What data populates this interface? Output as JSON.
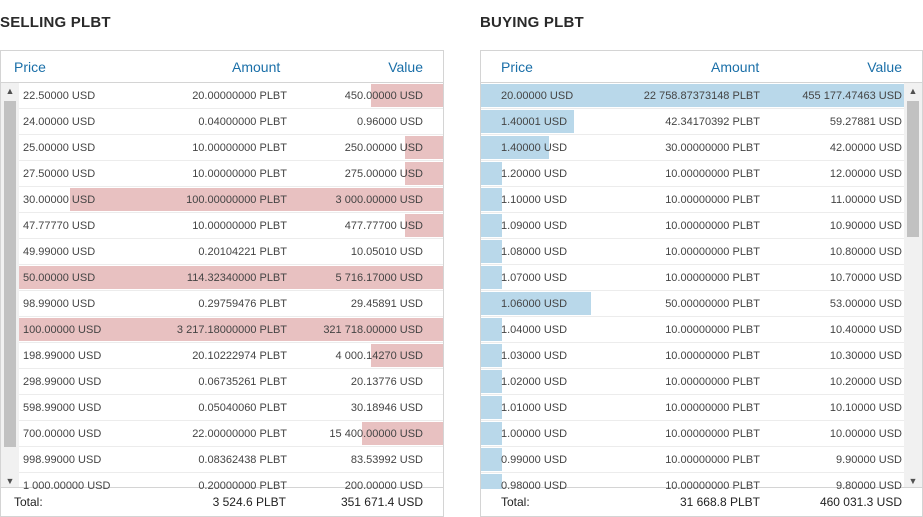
{
  "selling": {
    "title": "SELLING PLBT",
    "headers": {
      "price": "Price",
      "amount": "Amount",
      "value": "Value"
    },
    "rows": [
      {
        "price": "22.50000 USD",
        "amount": "20.00000000 PLBT",
        "value": "450.00000 USD",
        "depth": 0.17
      },
      {
        "price": "24.00000 USD",
        "amount": "0.04000000 PLBT",
        "value": "0.96000 USD",
        "depth": 0
      },
      {
        "price": "25.00000 USD",
        "amount": "10.00000000 PLBT",
        "value": "250.00000 USD",
        "depth": 0.09
      },
      {
        "price": "27.50000 USD",
        "amount": "10.00000000 PLBT",
        "value": "275.00000 USD",
        "depth": 0.09
      },
      {
        "price": "30.00000 USD",
        "amount": "100.00000000 PLBT",
        "value": "3 000.00000 USD",
        "depth": 0.88
      },
      {
        "price": "47.77770 USD",
        "amount": "10.00000000 PLBT",
        "value": "477.77700 USD",
        "depth": 0.09
      },
      {
        "price": "49.99000 USD",
        "amount": "0.20104221 PLBT",
        "value": "10.05010 USD",
        "depth": 0
      },
      {
        "price": "50.00000 USD",
        "amount": "114.32340000 PLBT",
        "value": "5 716.17000 USD",
        "depth": 1.0
      },
      {
        "price": "98.99000 USD",
        "amount": "0.29759476 PLBT",
        "value": "29.45891 USD",
        "depth": 0
      },
      {
        "price": "100.00000 USD",
        "amount": "3 217.18000000 PLBT",
        "value": "321 718.00000 USD",
        "depth": 1.0
      },
      {
        "price": "198.99000 USD",
        "amount": "20.10222974 PLBT",
        "value": "4 000.14270 USD",
        "depth": 0.17
      },
      {
        "price": "298.99000 USD",
        "amount": "0.06735261 PLBT",
        "value": "20.13776 USD",
        "depth": 0
      },
      {
        "price": "598.99000 USD",
        "amount": "0.05040060 PLBT",
        "value": "30.18946 USD",
        "depth": 0
      },
      {
        "price": "700.00000 USD",
        "amount": "22.00000000 PLBT",
        "value": "15 400.00000 USD",
        "depth": 0.19
      },
      {
        "price": "998.99000 USD",
        "amount": "0.08362438 PLBT",
        "value": "83.53992 USD",
        "depth": 0
      },
      {
        "price": "1 000.00000 USD",
        "amount": "0.20000000 PLBT",
        "value": "200.00000 USD",
        "depth": 0
      }
    ],
    "footer": {
      "label": "Total:",
      "amount": "3 524.6 PLBT",
      "value": "351 671.4 USD"
    },
    "scroll_position": 0.0
  },
  "buying": {
    "title": "BUYING PLBT",
    "headers": {
      "price": "Price",
      "amount": "Amount",
      "value": "Value"
    },
    "rows": [
      {
        "price": "20.00000 USD",
        "amount": "22 758.87373148 PLBT",
        "value": "455 177.47463 USD",
        "depth": 1.0
      },
      {
        "price": "1.40001 USD",
        "amount": "42.34170392 PLBT",
        "value": "59.27881 USD",
        "depth": 0.22
      },
      {
        "price": "1.40000 USD",
        "amount": "30.00000000 PLBT",
        "value": "42.00000 USD",
        "depth": 0.16
      },
      {
        "price": "1.20000 USD",
        "amount": "10.00000000 PLBT",
        "value": "12.00000 USD",
        "depth": 0.05
      },
      {
        "price": "1.10000 USD",
        "amount": "10.00000000 PLBT",
        "value": "11.00000 USD",
        "depth": 0.05
      },
      {
        "price": "1.09000 USD",
        "amount": "10.00000000 PLBT",
        "value": "10.90000 USD",
        "depth": 0.05
      },
      {
        "price": "1.08000 USD",
        "amount": "10.00000000 PLBT",
        "value": "10.80000 USD",
        "depth": 0.05
      },
      {
        "price": "1.07000 USD",
        "amount": "10.00000000 PLBT",
        "value": "10.70000 USD",
        "depth": 0.05
      },
      {
        "price": "1.06000 USD",
        "amount": "50.00000000 PLBT",
        "value": "53.00000 USD",
        "depth": 0.26
      },
      {
        "price": "1.04000 USD",
        "amount": "10.00000000 PLBT",
        "value": "10.40000 USD",
        "depth": 0.05
      },
      {
        "price": "1.03000 USD",
        "amount": "10.00000000 PLBT",
        "value": "10.30000 USD",
        "depth": 0.05
      },
      {
        "price": "1.02000 USD",
        "amount": "10.00000000 PLBT",
        "value": "10.20000 USD",
        "depth": 0.05
      },
      {
        "price": "1.01000 USD",
        "amount": "10.00000000 PLBT",
        "value": "10.10000 USD",
        "depth": 0.05
      },
      {
        "price": "1.00000 USD",
        "amount": "10.00000000 PLBT",
        "value": "10.00000 USD",
        "depth": 0.05
      },
      {
        "price": "0.99000 USD",
        "amount": "10.00000000 PLBT",
        "value": "9.90000 USD",
        "depth": 0.05
      },
      {
        "price": "0.98000 USD",
        "amount": "10.00000000 PLBT",
        "value": "9.80000 USD",
        "depth": 0.05
      }
    ],
    "footer": {
      "label": "Total:",
      "amount": "31 668.8 PLBT",
      "value": "460 031.3 USD"
    },
    "scroll_position": 0.0
  },
  "colors": {
    "sell_bar": "#e8c1c1",
    "buy_bar": "#b9d8ea",
    "header_text": "#1a6fa8"
  },
  "icons": {
    "scroll_up": "chevron-up-icon",
    "scroll_down": "chevron-down-icon"
  }
}
